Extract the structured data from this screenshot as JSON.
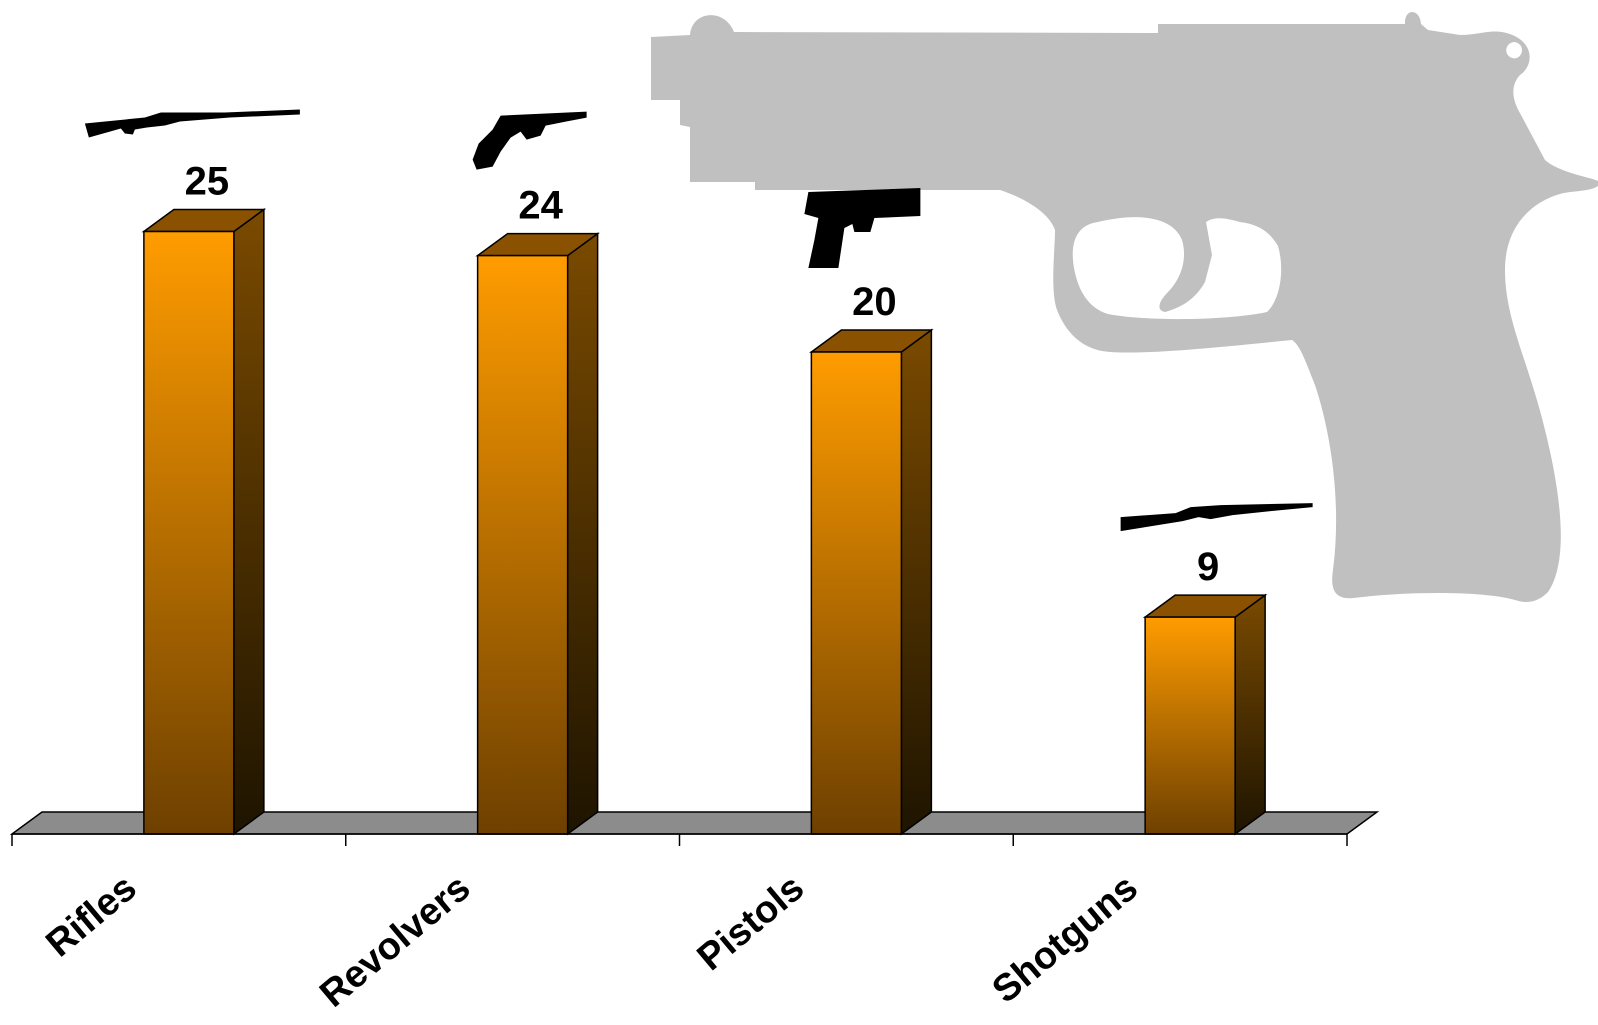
{
  "chart_data": {
    "type": "bar",
    "style": "3d-column",
    "categories": [
      "Rifles",
      "Revolvers",
      "Pistols",
      "Shotguns"
    ],
    "values": [
      25,
      24,
      20,
      9
    ],
    "ylim": [
      0,
      25
    ],
    "grid": false,
    "legend": "none",
    "data_labels": [
      "25",
      "24",
      "20",
      "9"
    ],
    "category_icons": [
      "rifle-icon",
      "revolver-icon",
      "pistol-icon",
      "shotgun-icon"
    ],
    "background_icon": "pistol-silhouette-icon",
    "colors": {
      "bar_front_top": "#ff9c00",
      "bar_front_bottom": "#6e4000",
      "bar_side_top": "#7a4a00",
      "bar_side_bottom": "#1e1400",
      "bar_cap": "#8a5200",
      "floor": "#8c8c8c",
      "silhouette": "#c0c0c0",
      "icon": "#000000"
    }
  }
}
